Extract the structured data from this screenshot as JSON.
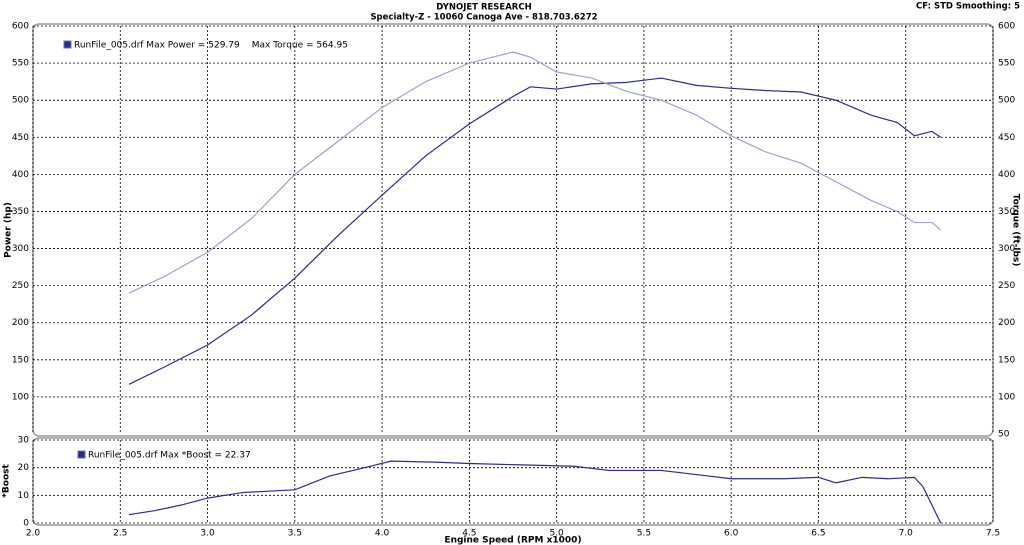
{
  "chart_data": [
    {
      "type": "line",
      "title": "DYNOJET RESEARCH",
      "subtitle": "Specialty-Z - 10060 Canoga Ave - 818.703.6272",
      "annotation": "CF: STD  Smoothing: 5",
      "ylabel": "Power (hp)",
      "y2label": "Torque (ft-lbs)",
      "x": [
        2.55,
        2.75,
        3.0,
        3.25,
        3.5,
        3.75,
        4.0,
        4.25,
        4.5,
        4.75,
        4.85,
        5.0,
        5.2,
        5.4,
        5.6,
        5.8,
        6.0,
        6.2,
        6.4,
        6.6,
        6.8,
        6.95,
        7.05,
        7.15,
        7.2
      ],
      "series": [
        {
          "name": "RunFile_005.drf Max Power = 529.79",
          "color": "#2a2a8a",
          "values": [
            117,
            140,
            170,
            210,
            260,
            318,
            372,
            425,
            468,
            505,
            518,
            515,
            522,
            524,
            529.79,
            520,
            516,
            513,
            511,
            500,
            480,
            470,
            452,
            458,
            450
          ]
        },
        {
          "name": "Max Torque = 564.95",
          "color": "#9ea3cc",
          "axis": "y2",
          "values": [
            240,
            262,
            295,
            340,
            400,
            445,
            490,
            525,
            550,
            564.95,
            558,
            538,
            530,
            512,
            500,
            480,
            452,
            430,
            415,
            390,
            365,
            350,
            335,
            335,
            325
          ]
        }
      ],
      "ylim": [
        50,
        600
      ],
      "yticks": [
        100,
        150,
        200,
        250,
        300,
        350,
        400,
        450,
        500,
        550,
        600
      ],
      "y2lim": [
        50,
        600
      ],
      "y2ticks": [
        50,
        100,
        150,
        200,
        250,
        300,
        350,
        400,
        450,
        500,
        550,
        600
      ],
      "grid": true
    },
    {
      "type": "line",
      "ylabel": "*Boost",
      "xlabel": "Engine Speed (RPM x1000)",
      "x": [
        2.55,
        2.7,
        2.85,
        3.0,
        3.2,
        3.5,
        3.7,
        3.9,
        4.05,
        4.3,
        4.5,
        4.8,
        5.1,
        5.3,
        5.6,
        5.8,
        6.0,
        6.3,
        6.5,
        6.6,
        6.75,
        6.9,
        7.05,
        7.1,
        7.2
      ],
      "series": [
        {
          "name": "RunFile_005.drf Max *Boost = 22.37",
          "color": "#2a2a8a",
          "values": [
            3,
            4.5,
            6.5,
            9,
            11,
            12,
            17,
            20,
            22.37,
            22,
            21.5,
            21,
            20.5,
            19,
            19,
            17.5,
            16,
            16,
            16.5,
            14.5,
            16.5,
            16,
            16.5,
            13,
            0
          ]
        }
      ],
      "xlim": [
        2,
        7.5
      ],
      "xticks": [
        {
          "value": 2,
          "label": "2.0"
        },
        2.5,
        {
          "value": 3,
          "label": "3.0"
        },
        3.5,
        {
          "value": 4,
          "label": "4.0"
        },
        4.5,
        {
          "value": 5,
          "label": "5.0"
        },
        5.5,
        {
          "value": 6,
          "label": "6.0"
        },
        6.5,
        {
          "value": 7,
          "label": "7.0"
        },
        7.5
      ],
      "ylim": [
        0,
        30
      ],
      "yticks": [
        0,
        10,
        20,
        30
      ],
      "grid": true
    }
  ]
}
